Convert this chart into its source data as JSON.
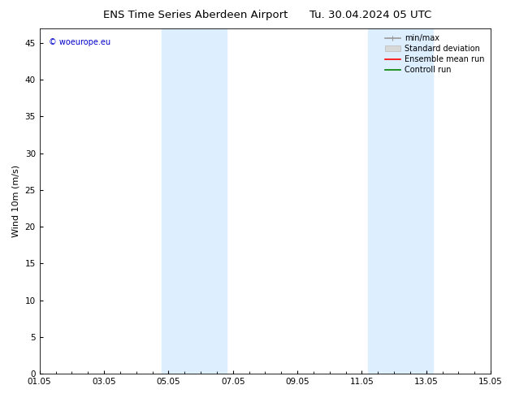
{
  "title_left": "ENS Time Series Aberdeen Airport",
  "title_right": "Tu. 30.04.2024 05 UTC",
  "ylabel": "Wind 10m (m/s)",
  "watermark": "© woeurope.eu",
  "watermark_color": "#0000cc",
  "background_color": "#ffffff",
  "plot_bg_color": "#ffffff",
  "ylim": [
    0,
    47
  ],
  "yticks": [
    0,
    5,
    10,
    15,
    20,
    25,
    30,
    35,
    40,
    45
  ],
  "xlim_start": 0,
  "xlim_end": 14,
  "xtick_labels": [
    "01.05",
    "03.05",
    "05.05",
    "07.05",
    "09.05",
    "11.05",
    "13.05",
    "15.05"
  ],
  "xtick_positions": [
    0,
    2,
    4,
    6,
    8,
    10,
    12,
    14
  ],
  "shade_bands": [
    {
      "xmin": 3.8,
      "xmax": 5.8
    },
    {
      "xmin": 10.2,
      "xmax": 12.2
    }
  ],
  "shade_color": "#ddeeff",
  "legend_entries": [
    {
      "label": "min/max",
      "color": "#999999",
      "lw": 1.2
    },
    {
      "label": "Standard deviation",
      "color": "#cccccc",
      "lw": 5
    },
    {
      "label": "Ensemble mean run",
      "color": "#ff0000",
      "lw": 1.2
    },
    {
      "label": "Controll run",
      "color": "#008000",
      "lw": 1.2
    }
  ],
  "title_fontsize": 9.5,
  "ylabel_fontsize": 8,
  "tick_fontsize": 7.5,
  "legend_fontsize": 7,
  "watermark_fontsize": 7
}
